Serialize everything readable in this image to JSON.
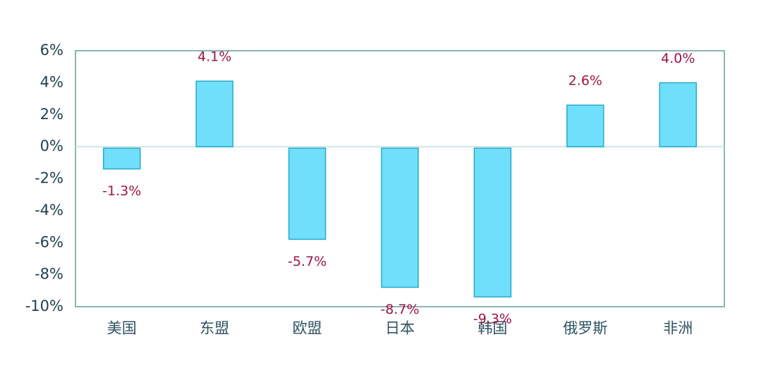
{
  "chart_data": {
    "type": "bar",
    "categories": [
      "美国",
      "东盟",
      "欧盟",
      "日本",
      "韩国",
      "俄罗斯",
      "非洲"
    ],
    "values": [
      -1.3,
      4.1,
      -5.7,
      -8.7,
      -9.3,
      2.6,
      4.0
    ],
    "value_labels": [
      "-1.3%",
      "4.1%",
      "-5.7%",
      "-8.7%",
      "-9.3%",
      "2.6%",
      "4.0%"
    ],
    "color": "#6fdffb",
    "ylim": [
      -10,
      6
    ],
    "yticks": [
      {
        "value": -10,
        "label": "-10%"
      },
      {
        "value": -8,
        "label": "-8%"
      },
      {
        "value": -6,
        "label": "-6%"
      },
      {
        "value": -4,
        "label": "-4%"
      },
      {
        "value": -2,
        "label": "-2%"
      },
      {
        "value": 0,
        "label": "0%"
      },
      {
        "value": 2,
        "label": "2%"
      },
      {
        "value": 4,
        "label": "4%"
      },
      {
        "value": 6,
        "label": "6%"
      }
    ]
  }
}
